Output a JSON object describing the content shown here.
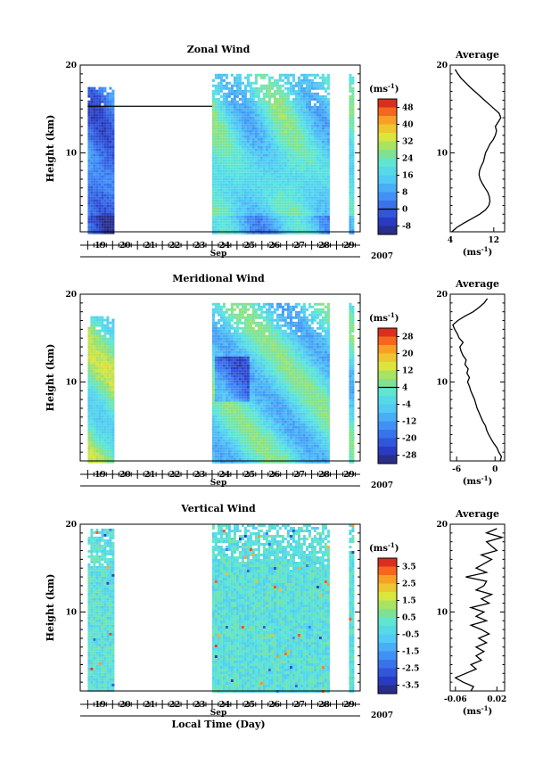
{
  "panels": [
    {
      "title": "Zonal Wind",
      "ylabel": "Height (km)",
      "ylim": [
        1,
        20
      ],
      "yticks": [
        10,
        20
      ],
      "days": [
        "19",
        "20",
        "21",
        "22",
        "23",
        "24",
        "25",
        "26",
        "27",
        "28",
        "29"
      ],
      "month": "Sep",
      "year": "2007",
      "colorbar": {
        "unit": "(ms",
        "unit_exp": "-1",
        "unit_close": ")",
        "levels": [
          48,
          40,
          32,
          24,
          16,
          8,
          0,
          -8
        ],
        "labels": [
          "48",
          "40",
          "32",
          "24",
          "16",
          "8",
          "0",
          "-8"
        ],
        "min": -12,
        "max": 52
      },
      "data_ranges": [
        {
          "start_day": 19.0,
          "end_day": 20.0,
          "top_km": 17.5,
          "bottom_km": 1.0
        },
        {
          "start_day": 24.0,
          "end_day": 28.7,
          "top_km": 19.0,
          "bottom_km": 1.0
        },
        {
          "start_day": 29.5,
          "end_day": 29.7,
          "top_km": 19.0,
          "bottom_km": 1.0
        }
      ],
      "base_value": 18,
      "profile": {
        "title": "Average",
        "xlim": [
          4,
          14
        ],
        "xticks": [
          4,
          12
        ],
        "xtick_labels": [
          "4",
          "12"
        ],
        "xlabel": "(ms",
        "xlabel_exp": "-1",
        "xlabel_close": ")",
        "ylim": [
          1,
          20
        ],
        "yticks": [
          10,
          20
        ],
        "heights": [
          1.0,
          1.5,
          2.0,
          2.5,
          3.0,
          3.5,
          4.0,
          4.5,
          5.0,
          5.5,
          6.0,
          6.5,
          7.0,
          7.5,
          8.0,
          8.5,
          9.0,
          9.5,
          10.0,
          10.5,
          11.0,
          11.5,
          12.0,
          12.5,
          13.0,
          13.5,
          14.0,
          14.5,
          15.0,
          15.5,
          16.0,
          16.5,
          17.0,
          17.5,
          18.0,
          18.5,
          19.0,
          19.5
        ],
        "values": [
          4.3,
          5.2,
          6.5,
          8.0,
          9.4,
          10.5,
          11.1,
          11.3,
          11.2,
          10.9,
          10.4,
          9.9,
          9.5,
          9.3,
          9.4,
          9.7,
          10.1,
          10.3,
          10.5,
          10.9,
          11.3,
          11.9,
          12.3,
          12.5,
          12.3,
          12.8,
          13.3,
          13.0,
          12.1,
          11.2,
          10.3,
          9.4,
          8.5,
          7.6,
          6.8,
          6.0,
          5.4,
          4.9
        ]
      }
    },
    {
      "title": "Meridional Wind",
      "ylabel": "Height (km)",
      "ylim": [
        1,
        20
      ],
      "yticks": [
        10,
        20
      ],
      "days": [
        "19",
        "20",
        "21",
        "22",
        "23",
        "24",
        "25",
        "26",
        "27",
        "28",
        "29"
      ],
      "month": "Sep",
      "year": "2007",
      "colorbar": {
        "unit": "(ms",
        "unit_exp": "-1",
        "unit_close": ")",
        "levels": [
          28,
          20,
          12,
          4,
          -4,
          -12,
          -20,
          -28
        ],
        "labels": [
          "28",
          "20",
          "12",
          "4",
          "-4",
          "-12",
          "-20",
          "-28"
        ],
        "min": -32,
        "max": 32
      },
      "data_ranges": [
        {
          "start_day": 19.0,
          "end_day": 20.0,
          "top_km": 17.5,
          "bottom_km": 1.0
        },
        {
          "start_day": 24.0,
          "end_day": 28.7,
          "top_km": 19.0,
          "bottom_km": 1.0
        },
        {
          "start_day": 29.5,
          "end_day": 29.7,
          "top_km": 19.0,
          "bottom_km": 1.0
        }
      ],
      "base_value": -2,
      "profile": {
        "title": "Average",
        "xlim": [
          -7,
          1.5
        ],
        "xticks": [
          -6,
          0
        ],
        "xtick_labels": [
          "-6",
          "0"
        ],
        "xlabel": "(ms",
        "xlabel_exp": "-1",
        "xlabel_close": ")",
        "ylim": [
          1,
          20
        ],
        "yticks": [
          10,
          20
        ],
        "heights": [
          1.0,
          1.5,
          2.0,
          2.5,
          3.0,
          3.5,
          4.0,
          4.5,
          5.0,
          5.5,
          6.0,
          6.5,
          7.0,
          7.5,
          8.0,
          8.5,
          9.0,
          9.5,
          10.0,
          10.5,
          11.0,
          11.5,
          12.0,
          12.5,
          13.0,
          13.5,
          14.0,
          14.5,
          15.0,
          15.5,
          16.0,
          16.5,
          17.0,
          17.5,
          18.0,
          18.5,
          19.0,
          19.5
        ],
        "values": [
          0.8,
          1.0,
          0.6,
          0.3,
          -0.2,
          -0.6,
          -1.0,
          -1.3,
          -1.5,
          -1.9,
          -2.2,
          -2.5,
          -2.8,
          -3.0,
          -3.2,
          -3.5,
          -3.8,
          -4.0,
          -4.3,
          -4.0,
          -4.4,
          -4.2,
          -4.7,
          -4.5,
          -5.0,
          -5.3,
          -5.5,
          -5.0,
          -5.6,
          -5.9,
          -6.3,
          -6.6,
          -5.8,
          -4.7,
          -3.4,
          -2.5,
          -1.7,
          -1.2
        ]
      }
    },
    {
      "title": "Vertical Wind",
      "ylabel": "Height (km)",
      "ylim": [
        1,
        20
      ],
      "yticks": [
        10,
        20
      ],
      "days": [
        "19",
        "20",
        "21",
        "22",
        "23",
        "24",
        "25",
        "26",
        "27",
        "28",
        "29"
      ],
      "month": "Sep",
      "year": "2007",
      "xlabel": "Local Time (Day)",
      "colorbar": {
        "unit": "(ms",
        "unit_exp": "-1",
        "unit_close": ")",
        "levels": [
          3.5,
          2.5,
          1.5,
          0.5,
          -0.5,
          -1.5,
          -2.5,
          -3.5
        ],
        "labels": [
          "3.5",
          "2.5",
          "1.5",
          "0.5",
          "-0.5",
          "-1.5",
          "-2.5",
          "-3.5"
        ],
        "min": -4,
        "max": 4
      },
      "data_ranges": [
        {
          "start_day": 19.0,
          "end_day": 20.0,
          "top_km": 19.5,
          "bottom_km": 1.0
        },
        {
          "start_day": 24.0,
          "end_day": 28.7,
          "top_km": 20.0,
          "bottom_km": 1.0
        },
        {
          "start_day": 29.5,
          "end_day": 29.7,
          "top_km": 20.0,
          "bottom_km": 1.0
        }
      ],
      "base_value": 0,
      "profile": {
        "title": "Average",
        "xlim": [
          -0.07,
          0.035
        ],
        "xticks": [
          -0.06,
          0.02
        ],
        "xtick_labels": [
          "-0.06",
          "0.02"
        ],
        "xlabel": "(ms",
        "xlabel_exp": "-1",
        "xlabel_close": ")",
        "ylim": [
          1,
          20
        ],
        "yticks": [
          10,
          20
        ],
        "heights": [
          1.0,
          1.5,
          2.0,
          2.5,
          3.0,
          3.5,
          4.0,
          4.5,
          5.0,
          5.5,
          6.0,
          6.5,
          7.0,
          7.5,
          8.0,
          8.5,
          9.0,
          9.5,
          10.0,
          10.5,
          11.0,
          11.5,
          12.0,
          12.5,
          13.0,
          13.5,
          14.0,
          14.5,
          15.0,
          15.5,
          16.0,
          16.5,
          17.0,
          17.5,
          18.0,
          18.5,
          19.0,
          19.5
        ],
        "values": [
          -0.03,
          -0.025,
          -0.045,
          -0.06,
          -0.04,
          -0.02,
          -0.03,
          -0.01,
          -0.02,
          -0.005,
          -0.02,
          0.0,
          -0.015,
          0.005,
          -0.01,
          -0.03,
          0.0,
          -0.02,
          -0.005,
          -0.03,
          0.005,
          -0.01,
          0.01,
          -0.02,
          -0.005,
          0.0,
          -0.04,
          0.0,
          -0.02,
          -0.005,
          0.01,
          -0.01,
          0.02,
          0.01,
          0.0,
          0.03,
          0.0,
          0.02
        ]
      }
    }
  ]
}
